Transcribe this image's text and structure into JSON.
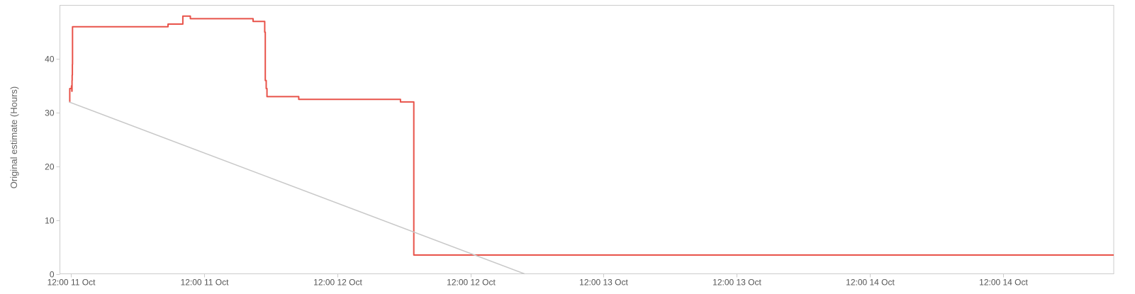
{
  "chart_data": {
    "type": "line",
    "title": "",
    "xlabel": "",
    "ylabel": "Original estimate (Hours)",
    "grid": false,
    "x_range": [
      "2023-10-11T00:00",
      "2023-10-15T00:00"
    ],
    "ylim": [
      0,
      50
    ],
    "y_ticks": [
      0,
      10,
      20,
      30,
      40
    ],
    "x_ticks": [
      {
        "x": "2023-10-11T00:00",
        "label": "12:00 11 Oct"
      },
      {
        "x": "2023-10-11T12:00",
        "label": "12:00 11 Oct"
      },
      {
        "x": "2023-10-12T00:00",
        "label": "12:00 12 Oct"
      },
      {
        "x": "2023-10-12T12:00",
        "label": "12:00 12 Oct"
      },
      {
        "x": "2023-10-13T00:00",
        "label": "12:00 13 Oct"
      },
      {
        "x": "2023-10-13T12:00",
        "label": "12:00 13 Oct"
      },
      {
        "x": "2023-10-14T00:00",
        "label": "12:00 14 Oct"
      },
      {
        "x": "2023-10-14T12:00",
        "label": "12:00 14 Oct"
      }
    ],
    "series": [
      {
        "color": "#e8534a",
        "step": true,
        "points": [
          {
            "x": "2023-10-10T23:50",
            "y": 32.0
          },
          {
            "x": "2023-10-10T23:54",
            "y": 34.5
          },
          {
            "x": "2023-10-11T00:03",
            "y": 35.0
          },
          {
            "x": "2023-10-11T00:05",
            "y": 34.0
          },
          {
            "x": "2023-10-11T00:06",
            "y": 36.0
          },
          {
            "x": "2023-10-11T00:07",
            "y": 37.0
          },
          {
            "x": "2023-10-11T00:08",
            "y": 39.0
          },
          {
            "x": "2023-10-11T00:09",
            "y": 46.0
          },
          {
            "x": "2023-10-11T08:45",
            "y": 46.5
          },
          {
            "x": "2023-10-11T10:05",
            "y": 48.0
          },
          {
            "x": "2023-10-11T10:46",
            "y": 47.5
          },
          {
            "x": "2023-10-11T16:25",
            "y": 47.0
          },
          {
            "x": "2023-10-11T17:28",
            "y": 45.0
          },
          {
            "x": "2023-10-11T17:31",
            "y": 36.0
          },
          {
            "x": "2023-10-11T17:36",
            "y": 34.5
          },
          {
            "x": "2023-10-11T17:40",
            "y": 33.0
          },
          {
            "x": "2023-10-11T20:32",
            "y": 32.5
          },
          {
            "x": "2023-10-12T05:42",
            "y": 32.0
          },
          {
            "x": "2023-10-12T06:54",
            "y": 3.5
          },
          {
            "x": "2023-10-12T16:52",
            "y": 3.5
          }
        ]
      },
      {
        "color": "#c8c8c8",
        "step": false,
        "points": [
          {
            "x": "2023-10-10T23:50",
            "y": 32.0
          },
          {
            "x": "2023-10-12T16:52",
            "y": 0
          }
        ]
      }
    ]
  }
}
